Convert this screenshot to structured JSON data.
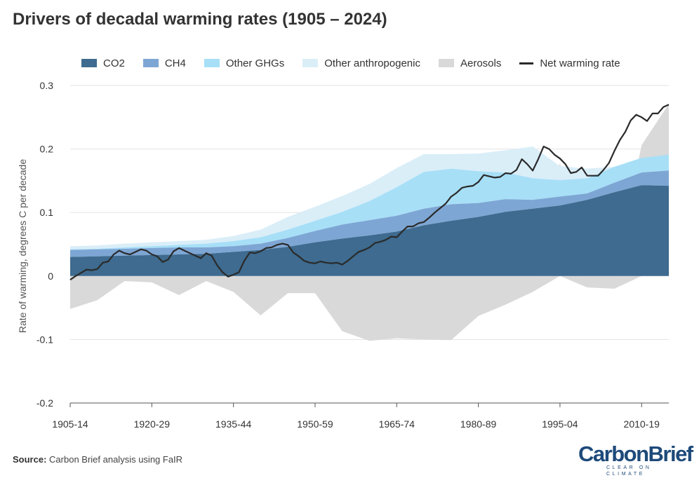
{
  "title": "Drivers of decadal warming rates (1905 – 2024)",
  "legend": [
    {
      "label": "CO2",
      "color": "#3e6b8f",
      "kind": "area"
    },
    {
      "label": "CH4",
      "color": "#7ea6d4",
      "kind": "area"
    },
    {
      "label": "Other GHGs",
      "color": "#a7dff7",
      "kind": "area"
    },
    {
      "label": "Other anthropogenic",
      "color": "#daeef8",
      "kind": "area"
    },
    {
      "label": "Aerosols",
      "color": "#d9d9d9",
      "kind": "area"
    },
    {
      "label": "Net warming rate",
      "color": "#2a2a2a",
      "kind": "line"
    }
  ],
  "source": {
    "label": "Source:",
    "text": "Carbon Brief analysis using FaIR"
  },
  "logo": {
    "main": "CarbonBrief",
    "sub": "CLEAR ON CLIMATE"
  },
  "chart_data": {
    "type": "area",
    "title": "Drivers of decadal warming rates (1905 – 2024)",
    "xlabel": "",
    "ylabel": "Rate of warming, degrees C per decade",
    "ylim": [
      -0.2,
      0.3
    ],
    "yticks": [
      0.3,
      0.2,
      0.1,
      0,
      -0.1,
      -0.2
    ],
    "ytick_labels": [
      "0.3",
      "0.2",
      "0.1",
      "0",
      "-0.1",
      "-0.2"
    ],
    "xlim": [
      1905,
      2015
    ],
    "xticks": [
      1905,
      1920,
      1935,
      1950,
      1965,
      1980,
      1995,
      2010
    ],
    "xtick_labels": [
      "1905-14",
      "1920-29",
      "1935-44",
      "1950-59",
      "1965-74",
      "1980-89",
      "1995-04",
      "2010-19"
    ],
    "grid": "horizontal",
    "legend_position": "top",
    "x_step": 5,
    "x_start": 1905,
    "series": [
      {
        "name": "CO2",
        "color": "#3e6b8f",
        "values": [
          0.03,
          0.031,
          0.032,
          0.033,
          0.034,
          0.035,
          0.038,
          0.041,
          0.046,
          0.053,
          0.059,
          0.064,
          0.07,
          0.08,
          0.087,
          0.093,
          0.101,
          0.106,
          0.111,
          0.12,
          0.132,
          0.143,
          0.142
        ]
      },
      {
        "name": "CH4",
        "color": "#7ea6d4",
        "values": [
          0.011,
          0.011,
          0.011,
          0.011,
          0.011,
          0.01,
          0.009,
          0.01,
          0.014,
          0.018,
          0.022,
          0.024,
          0.025,
          0.026,
          0.026,
          0.022,
          0.02,
          0.014,
          0.014,
          0.01,
          0.015,
          0.02,
          0.024
        ]
      },
      {
        "name": "Other GHGs",
        "color": "#a7dff7",
        "values": [
          0.001,
          0.001,
          0.002,
          0.003,
          0.004,
          0.006,
          0.008,
          0.01,
          0.013,
          0.016,
          0.02,
          0.03,
          0.045,
          0.058,
          0.056,
          0.05,
          0.042,
          0.034,
          0.026,
          0.024,
          0.025,
          0.023,
          0.025
        ]
      },
      {
        "name": "Other anthropogenic",
        "color": "#daeef8",
        "values": [
          0.005,
          0.005,
          0.006,
          0.006,
          0.006,
          0.006,
          0.008,
          0.012,
          0.02,
          0.022,
          0.025,
          0.027,
          0.03,
          0.028,
          0.023,
          0.028,
          0.035,
          0.05,
          0.022,
          0.015,
          0.0,
          0.0,
          0.0
        ]
      },
      {
        "name": "Aerosols",
        "color": "#d9d9d9",
        "values": [
          -0.052,
          -0.038,
          -0.008,
          -0.01,
          -0.03,
          -0.008,
          -0.025,
          -0.062,
          -0.027,
          -0.027,
          -0.087,
          -0.102,
          -0.098,
          -0.1,
          -0.101,
          -0.063,
          -0.045,
          -0.025,
          0.005,
          -0.018,
          -0.02,
          0.02,
          0.08
        ]
      },
      {
        "name": "Net warming rate",
        "color": "#2a2a2a",
        "type": "line",
        "x": [
          1905,
          1906,
          1907,
          1908,
          1909,
          1910,
          1911,
          1912,
          1913,
          1914,
          1915,
          1916,
          1917,
          1918,
          1919,
          1920,
          1921,
          1922,
          1923,
          1924,
          1925,
          1926,
          1927,
          1928,
          1929,
          1930,
          1931,
          1932,
          1933,
          1934,
          1935,
          1936,
          1937,
          1938,
          1939,
          1940,
          1941,
          1942,
          1943,
          1944,
          1945,
          1946,
          1947,
          1948,
          1949,
          1950,
          1951,
          1952,
          1953,
          1954,
          1955,
          1956,
          1957,
          1958,
          1959,
          1960,
          1961,
          1962,
          1963,
          1964,
          1965,
          1966,
          1967,
          1968,
          1969,
          1970,
          1971,
          1972,
          1973,
          1974,
          1975,
          1976,
          1977,
          1978,
          1979,
          1980,
          1981,
          1982,
          1983,
          1984,
          1985,
          1986,
          1987,
          1988,
          1989,
          1990,
          1991,
          1992,
          1993,
          1994,
          1995,
          1996,
          1997,
          1998,
          1999,
          2000,
          2001,
          2002,
          2003,
          2004,
          2005,
          2006,
          2007,
          2008,
          2009,
          2010,
          2011,
          2012,
          2013,
          2014,
          2015
        ],
        "values": [
          -0.006,
          0.0,
          0.005,
          0.01,
          0.009,
          0.011,
          0.021,
          0.023,
          0.034,
          0.04,
          0.036,
          0.034,
          0.038,
          0.042,
          0.04,
          0.034,
          0.031,
          0.022,
          0.026,
          0.039,
          0.044,
          0.04,
          0.036,
          0.032,
          0.028,
          0.036,
          0.032,
          0.017,
          0.006,
          -0.001,
          0.002,
          0.006,
          0.024,
          0.037,
          0.036,
          0.039,
          0.044,
          0.045,
          0.049,
          0.051,
          0.049,
          0.037,
          0.031,
          0.024,
          0.021,
          0.02,
          0.023,
          0.021,
          0.02,
          0.021,
          0.018,
          0.024,
          0.031,
          0.038,
          0.041,
          0.045,
          0.052,
          0.054,
          0.057,
          0.062,
          0.061,
          0.07,
          0.078,
          0.078,
          0.083,
          0.085,
          0.092,
          0.1,
          0.107,
          0.114,
          0.125,
          0.131,
          0.139,
          0.141,
          0.142,
          0.148,
          0.159,
          0.157,
          0.155,
          0.156,
          0.162,
          0.161,
          0.167,
          0.184,
          0.176,
          0.166,
          0.184,
          0.204,
          0.2,
          0.191,
          0.185,
          0.176,
          0.162,
          0.164,
          0.171,
          0.158,
          0.158,
          0.158,
          0.167,
          0.178,
          0.197,
          0.214,
          0.227,
          0.245,
          0.254,
          0.25,
          0.244,
          0.256,
          0.256,
          0.266,
          0.27
        ]
      }
    ]
  }
}
